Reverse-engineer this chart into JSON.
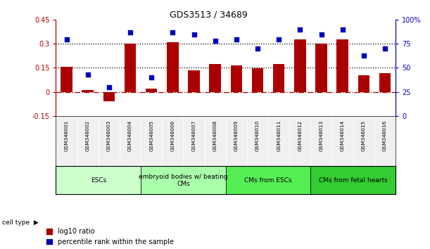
{
  "title": "GDS3513 / 34689",
  "samples": [
    "GSM348001",
    "GSM348002",
    "GSM348003",
    "GSM348004",
    "GSM348005",
    "GSM348006",
    "GSM348007",
    "GSM348008",
    "GSM348009",
    "GSM348010",
    "GSM348011",
    "GSM348012",
    "GSM348013",
    "GSM348014",
    "GSM348015",
    "GSM348016"
  ],
  "log10_ratio": [
    0.155,
    0.01,
    -0.06,
    0.3,
    0.02,
    0.31,
    0.135,
    0.175,
    0.165,
    0.148,
    0.175,
    0.33,
    0.3,
    0.33,
    0.105,
    0.115
  ],
  "percentile_rank": [
    80,
    43,
    30,
    87,
    40,
    87,
    85,
    78,
    80,
    70,
    80,
    90,
    85,
    90,
    63,
    70
  ],
  "bar_color": "#aa0000",
  "dot_color": "#0000bb",
  "ylim_left": [
    -0.15,
    0.45
  ],
  "ylim_right": [
    0,
    100
  ],
  "yticks_left": [
    -0.15,
    0,
    0.15,
    0.3,
    0.45
  ],
  "yticks_right": [
    0,
    25,
    50,
    75,
    100
  ],
  "hline_values": [
    0.15,
    0.3
  ],
  "cell_type_groups": [
    {
      "label": "ESCs",
      "start": 0,
      "end": 3,
      "color": "#ccffcc"
    },
    {
      "label": "embryoid bodies w/ beating\nCMs",
      "start": 4,
      "end": 7,
      "color": "#aaffaa"
    },
    {
      "label": "CMs from ESCs",
      "start": 8,
      "end": 11,
      "color": "#55ee55"
    },
    {
      "label": "CMs from fetal hearts",
      "start": 12,
      "end": 15,
      "color": "#33cc33"
    }
  ],
  "legend_items": [
    {
      "label": "log10 ratio",
      "color": "#aa0000"
    },
    {
      "label": "percentile rank within the sample",
      "color": "#0000bb"
    }
  ],
  "bg_color": "#f0f0f0"
}
